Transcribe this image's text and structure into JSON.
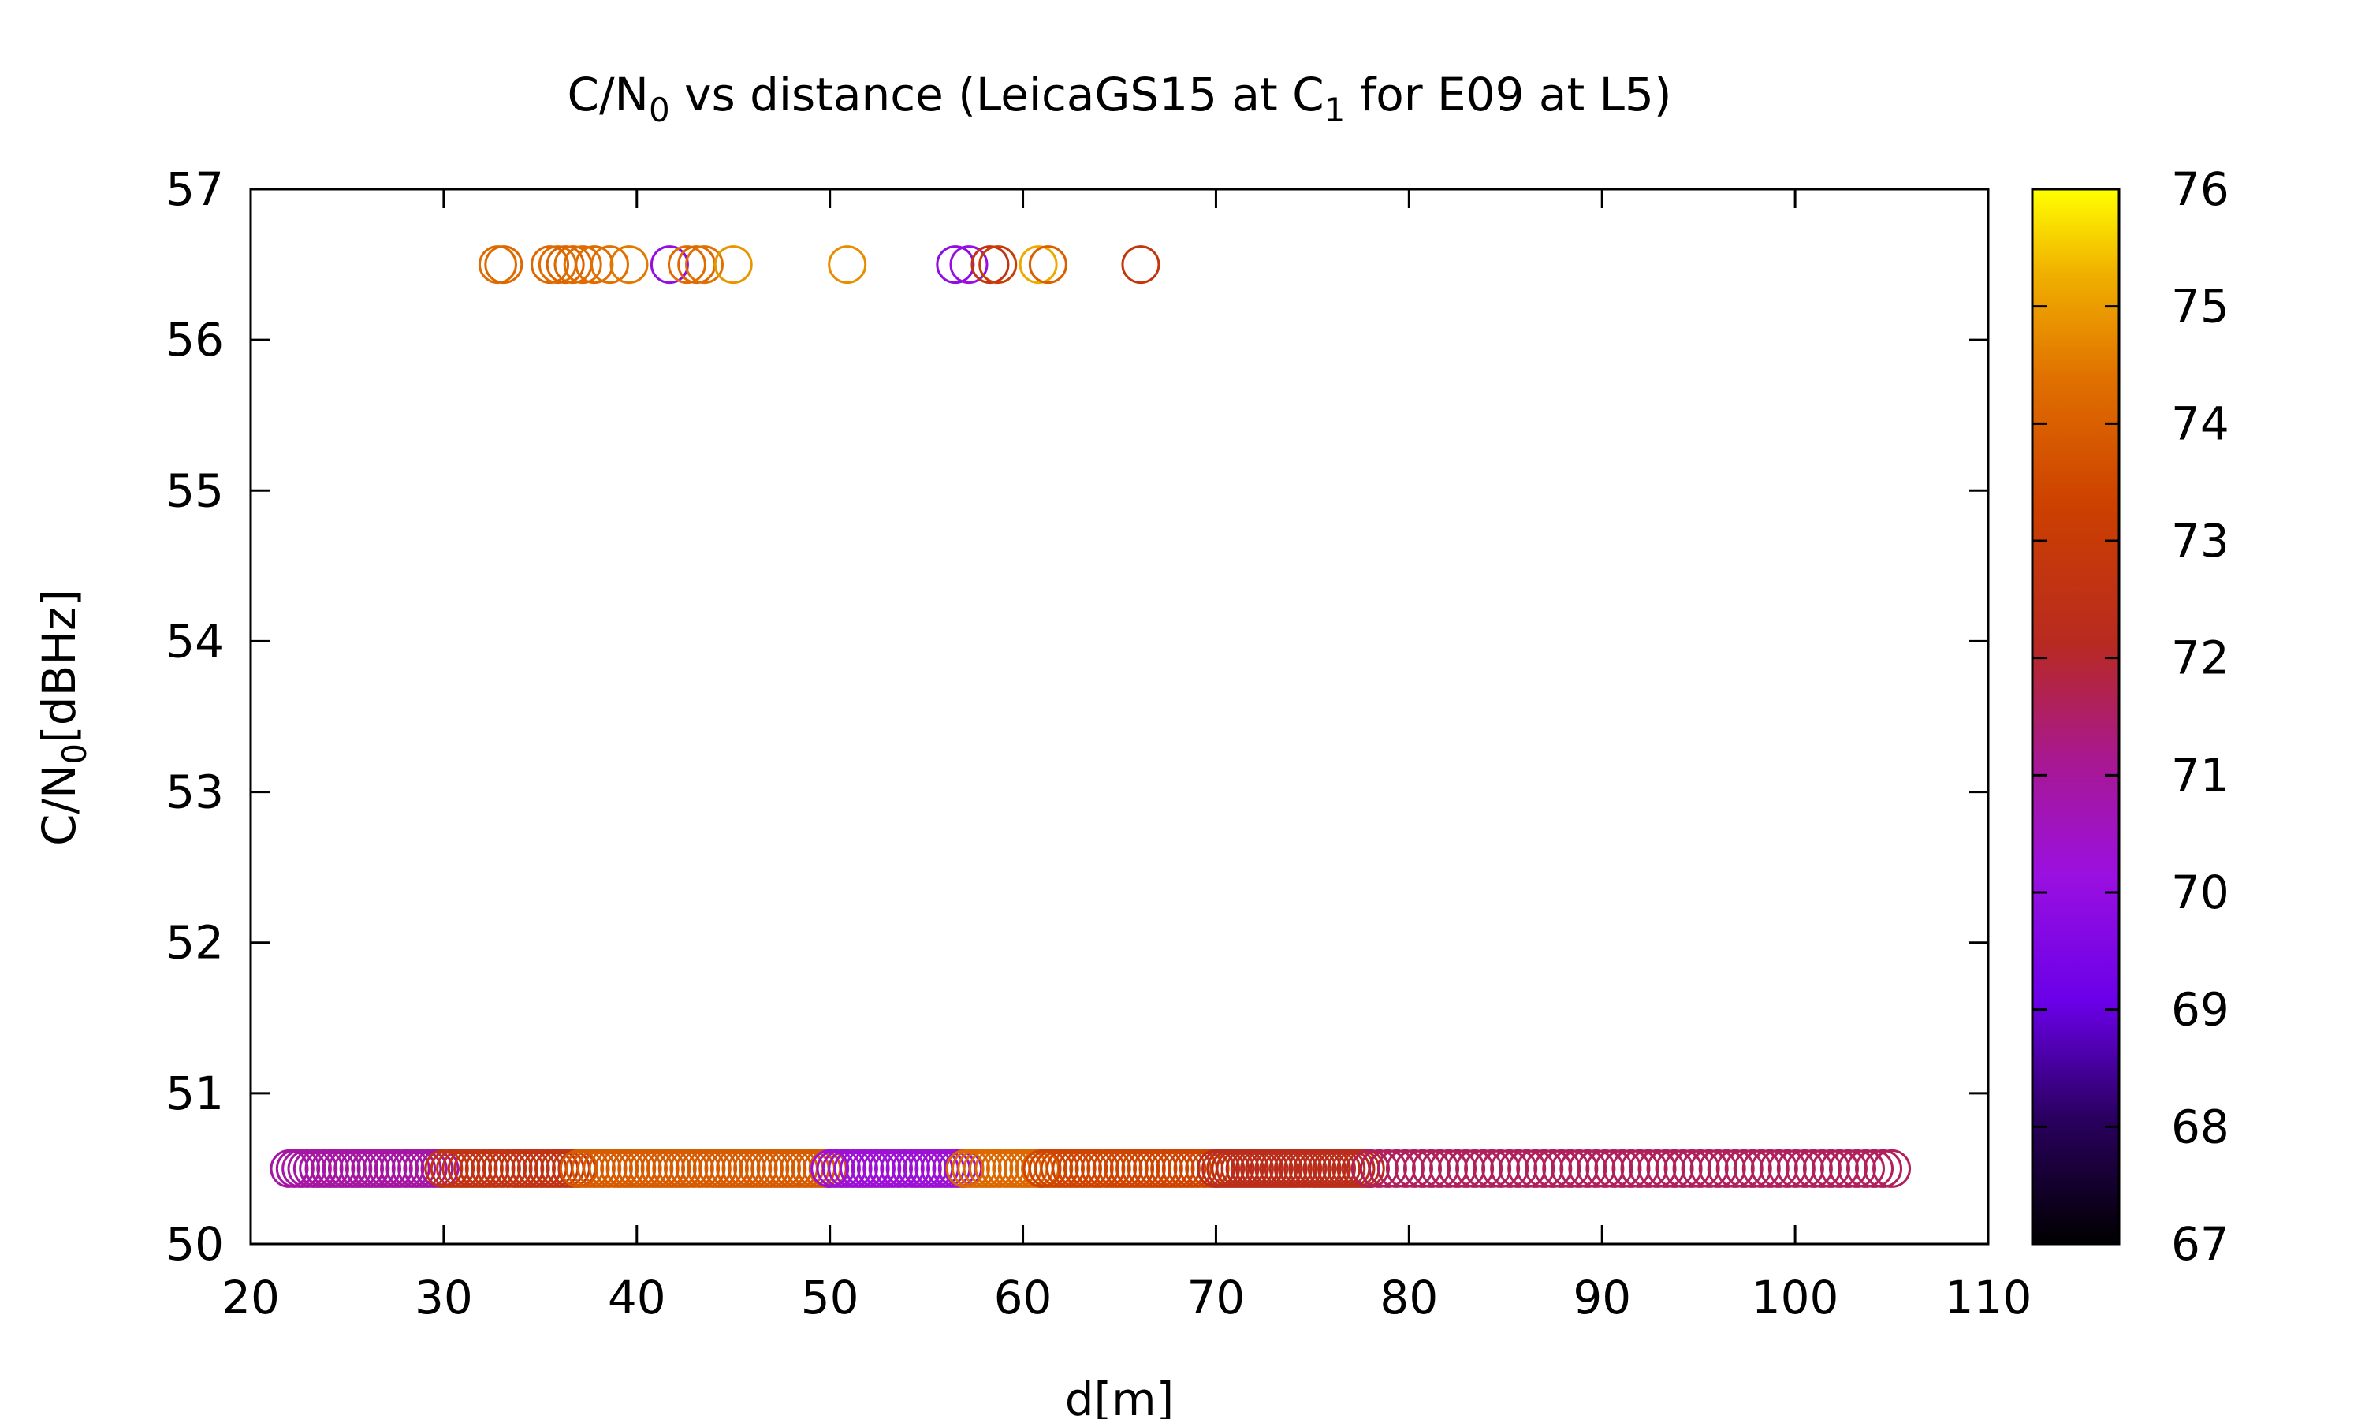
{
  "chart_data": {
    "type": "scatter",
    "title": "C/N",
    "title_sub": "0",
    "title_rest": " vs distance (LeicaGS15 at C",
    "title_sub2": "1",
    "title_end": " for E09 at L5)",
    "xlabel": "d[m]",
    "ylabel_main": "C/N",
    "ylabel_sub": "0",
    "ylabel_end": "[dBHz]",
    "xlim": [
      20,
      110
    ],
    "ylim": [
      50,
      57
    ],
    "x_ticks": [
      20,
      30,
      40,
      50,
      60,
      70,
      80,
      90,
      100,
      110
    ],
    "y_ticks": [
      50,
      51,
      52,
      53,
      54,
      55,
      56,
      57
    ],
    "colorbar": {
      "range": [
        67,
        76
      ],
      "ticks": [
        67,
        68,
        69,
        70,
        71,
        72,
        73,
        74,
        75,
        76
      ],
      "palette": "black-purple-red-orange-yellow"
    },
    "color_variable_note": "",
    "series": [
      {
        "y": 56.5,
        "points": [
          [
            32.8,
            74.3
          ],
          [
            33.1,
            74.2
          ],
          [
            35.5,
            74.2
          ],
          [
            35.9,
            74.3
          ],
          [
            36.3,
            74.1
          ],
          [
            36.7,
            74.2
          ],
          [
            37.2,
            74.3
          ],
          [
            37.8,
            74.3
          ],
          [
            38.6,
            74.4
          ],
          [
            39.6,
            74.5
          ],
          [
            41.7,
            70.0
          ],
          [
            42.6,
            74.3
          ],
          [
            43.1,
            74.2
          ],
          [
            43.5,
            74.4
          ],
          [
            45.0,
            74.9
          ],
          [
            50.9,
            74.8
          ],
          [
            56.5,
            69.9
          ],
          [
            57.2,
            70.1
          ],
          [
            58.3,
            72.6
          ],
          [
            58.7,
            73.1
          ],
          [
            60.8,
            75.2
          ],
          [
            61.3,
            74.0
          ],
          [
            66.1,
            72.8
          ]
        ]
      },
      {
        "y": 50.5,
        "segments": [
          {
            "from": 22,
            "to": 30,
            "step": 0.3,
            "color_value": 70.9
          },
          {
            "from": 30,
            "to": 37,
            "step": 0.3,
            "color_value": 72.6
          },
          {
            "from": 37,
            "to": 50,
            "step": 0.3,
            "color_value": 73.9
          },
          {
            "from": 50,
            "to": 57,
            "step": 0.3,
            "color_value": 70.3
          },
          {
            "from": 57,
            "to": 61,
            "step": 0.3,
            "color_value": 74.2
          },
          {
            "from": 61,
            "to": 70,
            "step": 0.3,
            "color_value": 73.4
          },
          {
            "from": 70,
            "to": 78,
            "step": 0.25,
            "color_value": 72.3
          },
          {
            "from": 78,
            "to": 105.2,
            "step": 0.45,
            "color_value": 71.6
          }
        ]
      }
    ]
  }
}
